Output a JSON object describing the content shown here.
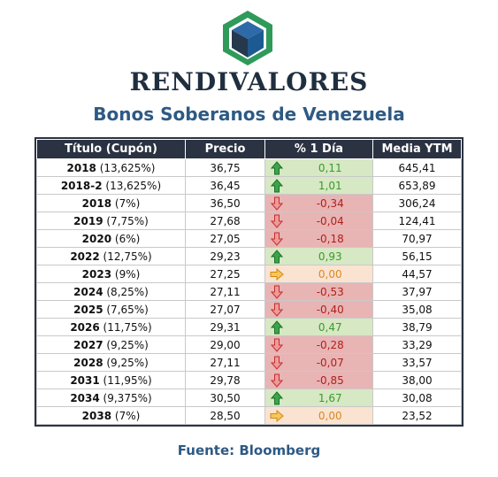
{
  "brand": "RENDIVALORES",
  "title": "Bonos Soberanos de Venezuela",
  "columns": [
    "Título (Cupón)",
    "Precio",
    "% 1 Día",
    "Media YTM"
  ],
  "rows": [
    {
      "year": "2018",
      "coupon": "(13,625%)",
      "price": "36,75",
      "change": "0,11",
      "ytm": "645,41",
      "trend": "up",
      "icon": "arrow-up-icon"
    },
    {
      "year": "2018-2",
      "coupon": "(13,625%)",
      "price": "36,45",
      "change": "1,01",
      "ytm": "653,89",
      "trend": "up",
      "icon": "arrow-up-icon"
    },
    {
      "year": "2018",
      "coupon": "(7%)",
      "price": "36,50",
      "change": "-0,34",
      "ytm": "306,24",
      "trend": "down",
      "icon": "arrow-down-icon"
    },
    {
      "year": "2019",
      "coupon": "(7,75%)",
      "price": "27,68",
      "change": "-0,04",
      "ytm": "124,41",
      "trend": "down",
      "icon": "arrow-down-icon"
    },
    {
      "year": "2020",
      "coupon": "(6%)",
      "price": "27,05",
      "change": "-0,18",
      "ytm": "70,97",
      "trend": "down",
      "icon": "arrow-down-icon"
    },
    {
      "year": "2022",
      "coupon": "(12,75%)",
      "price": "29,23",
      "change": "0,93",
      "ytm": "56,15",
      "trend": "up",
      "icon": "arrow-up-icon"
    },
    {
      "year": "2023",
      "coupon": "(9%)",
      "price": "27,25",
      "change": "0,00",
      "ytm": "44,57",
      "trend": "flat",
      "icon": "arrow-right-icon"
    },
    {
      "year": "2024",
      "coupon": "(8,25%)",
      "price": "27,11",
      "change": "-0,53",
      "ytm": "37,97",
      "trend": "down",
      "icon": "arrow-down-icon"
    },
    {
      "year": "2025",
      "coupon": "(7,65%)",
      "price": "27,07",
      "change": "-0,40",
      "ytm": "35,08",
      "trend": "down",
      "icon": "arrow-down-icon"
    },
    {
      "year": "2026",
      "coupon": "(11,75%)",
      "price": "29,31",
      "change": "0,47",
      "ytm": "38,79",
      "trend": "up",
      "icon": "arrow-up-icon"
    },
    {
      "year": "2027",
      "coupon": "(9,25%)",
      "price": "29,00",
      "change": "-0,28",
      "ytm": "33,29",
      "trend": "down",
      "icon": "arrow-down-icon"
    },
    {
      "year": "2028",
      "coupon": "(9,25%)",
      "price": "27,11",
      "change": "-0,07",
      "ytm": "33,57",
      "trend": "down",
      "icon": "arrow-down-icon"
    },
    {
      "year": "2031",
      "coupon": "(11,95%)",
      "price": "29,78",
      "change": "-0,85",
      "ytm": "38,00",
      "trend": "down",
      "icon": "arrow-down-icon"
    },
    {
      "year": "2034",
      "coupon": "(9,375%)",
      "price": "30,50",
      "change": "1,67",
      "ytm": "30,08",
      "trend": "up",
      "icon": "arrow-up-icon"
    },
    {
      "year": "2038",
      "coupon": "(7%)",
      "price": "28,50",
      "change": "0,00",
      "ytm": "23,52",
      "trend": "flat",
      "icon": "arrow-right-icon"
    }
  ],
  "source": "Fuente: Bloomberg",
  "colors": {
    "header_bg": "#2b3342",
    "title": "#2e5a84",
    "up_bg": "#d6e8c4",
    "up_text": "#3a9a2a",
    "down_bg": "#e8b4b4",
    "down_text": "#b0201c",
    "flat_bg": "#fbe3d2",
    "flat_text": "#d98a1e",
    "logo_green": "#2f9a5a",
    "logo_blue": "#2f6aa8",
    "logo_dark": "#26384e"
  }
}
